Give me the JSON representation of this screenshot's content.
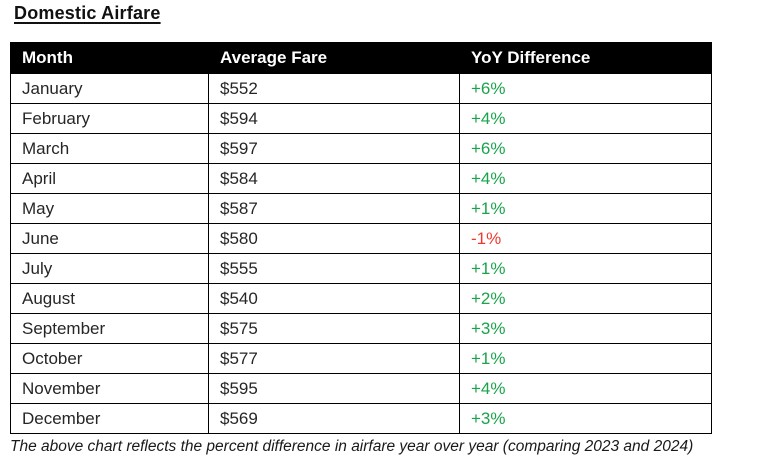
{
  "title": "Domestic Airfare",
  "footnote": "The above chart reflects the percent difference in airfare year over year (comparing 2023 and 2024)",
  "colors": {
    "positive": "#1aa34b",
    "negative": "#ee3a2e",
    "header_bg": "#000000",
    "header_text": "#ffffff",
    "border": "#000000"
  },
  "table": {
    "columns": [
      "Month",
      "Average Fare",
      "YoY Difference"
    ],
    "rows": [
      {
        "month": "January",
        "fare": "$552",
        "yoy": "+6%"
      },
      {
        "month": "February",
        "fare": "$594",
        "yoy": "+4%"
      },
      {
        "month": "March",
        "fare": "$597",
        "yoy": "+6%"
      },
      {
        "month": "April",
        "fare": "$584",
        "yoy": "+4%"
      },
      {
        "month": "May",
        "fare": "$587",
        "yoy": "+1%"
      },
      {
        "month": "June",
        "fare": "$580",
        "yoy": "-1%"
      },
      {
        "month": "July",
        "fare": "$555",
        "yoy": "+1%"
      },
      {
        "month": "August",
        "fare": "$540",
        "yoy": "+2%"
      },
      {
        "month": "September",
        "fare": "$575",
        "yoy": "+3%"
      },
      {
        "month": "October",
        "fare": "$577",
        "yoy": "+1%"
      },
      {
        "month": "November",
        "fare": "$595",
        "yoy": "+4%"
      },
      {
        "month": "December",
        "fare": "$569",
        "yoy": "+3%"
      }
    ]
  },
  "chart_data": {
    "type": "table",
    "title": "Domestic Airfare",
    "categories": [
      "January",
      "February",
      "March",
      "April",
      "May",
      "June",
      "July",
      "August",
      "September",
      "October",
      "November",
      "December"
    ],
    "series": [
      {
        "name": "Average Fare (USD)",
        "values": [
          552,
          594,
          597,
          584,
          587,
          580,
          555,
          540,
          575,
          577,
          595,
          569
        ]
      },
      {
        "name": "YoY Difference (%)",
        "values": [
          6,
          4,
          6,
          4,
          1,
          -1,
          1,
          2,
          3,
          1,
          4,
          3
        ]
      }
    ],
    "annotations": [
      "The above chart reflects the percent difference in airfare year over year (comparing 2023 and 2024)"
    ]
  }
}
